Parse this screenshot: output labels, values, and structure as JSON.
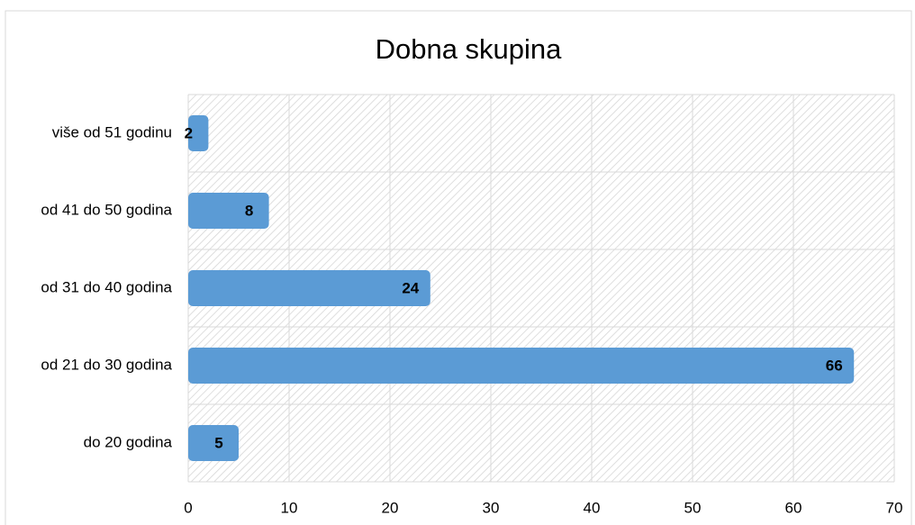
{
  "chart_data": {
    "type": "bar",
    "orientation": "horizontal",
    "title": "Dobna skupina",
    "categories": [
      "više od 51 godinu",
      "od 41 do 50 godina",
      "od 31 do 40 godina",
      "od 21 do 30 godina",
      "do 20 godina"
    ],
    "values": [
      2,
      8,
      24,
      66,
      5
    ],
    "color": "#5b9bd5",
    "xlim": [
      0,
      70
    ],
    "xticks": [
      0,
      10,
      20,
      30,
      40,
      50,
      60,
      70
    ],
    "grid": true
  }
}
